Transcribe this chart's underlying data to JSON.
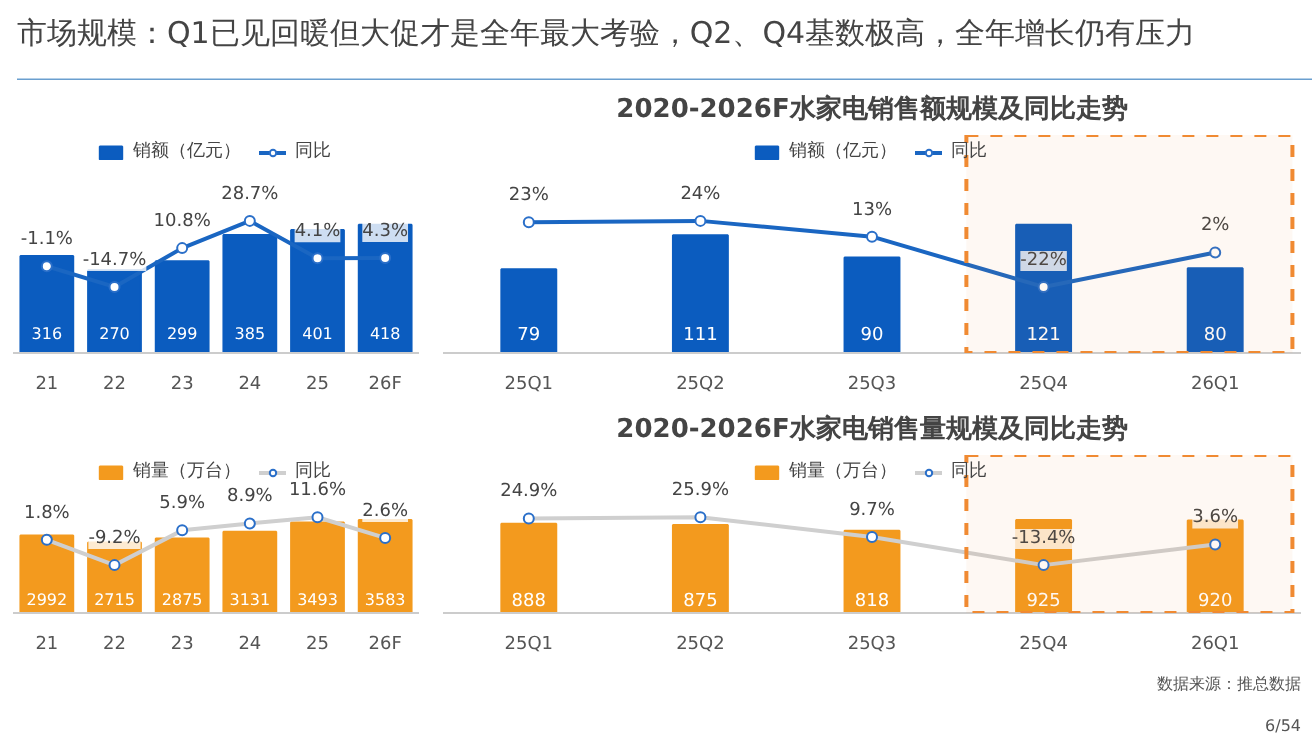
{
  "chart_data": [
    {
      "type": "other",
      "title": "市场规模：Q1已见回暖但大促才是全年最大考验，Q2、Q4基数极高，全年增长仍有压力"
    },
    {
      "type": "bar",
      "categories": [
        "21",
        "22",
        "23",
        "24",
        "25",
        "26F"
      ],
      "tick_labels": "x",
      "legend": "top",
      "marker": "circle",
      "data_labels": true,
      "series": [
        {
          "name": "销额（亿元）",
          "color": "#0b5cbf",
          "values": [
            316,
            270,
            299,
            385,
            401,
            418
          ]
        },
        {
          "name": "同比",
          "type": "line",
          "axis": "y2",
          "color": "#1a66c2",
          "values": [
            -1.1,
            -14.7,
            10.8,
            28.7,
            4.1,
            4.3
          ],
          "value_labels": [
            "-1.1%",
            "-14.7%",
            "10.8%",
            "28.7%",
            "4.1%",
            "4.3%"
          ]
        }
      ]
    },
    {
      "type": "bar",
      "title": "2020-2026F水家电销售额规模及同比走势",
      "categories": [
        "25Q1",
        "25Q2",
        "25Q3",
        "25Q4",
        "26Q1"
      ],
      "tick_labels": "x",
      "legend": "top",
      "marker": "circle",
      "data_labels": true,
      "series": [
        {
          "name": "销额（亿元）",
          "color": "#0b5cbf",
          "values": [
            79,
            111,
            90,
            121,
            80
          ]
        },
        {
          "name": "同比",
          "type": "line",
          "axis": "y2",
          "color": "#1a66c2",
          "values": [
            23,
            24,
            13,
            -22,
            2
          ],
          "value_labels": [
            "23%",
            "24%",
            "13%",
            "-22%",
            "2%"
          ]
        }
      ],
      "bands": [
        {
          "axis": "x",
          "from": "25Q4",
          "to": "26Q1",
          "color": "#f08a32"
        }
      ]
    },
    {
      "type": "bar",
      "categories": [
        "21",
        "22",
        "23",
        "24",
        "25",
        "26F"
      ],
      "tick_labels": "x",
      "legend": "top",
      "marker": "circle",
      "data_labels": true,
      "series": [
        {
          "name": "销量（万台）",
          "color": "#f39a1e",
          "values": [
            2992,
            2715,
            2875,
            3131,
            3493,
            3583
          ]
        },
        {
          "name": "同比",
          "type": "line",
          "axis": "y2",
          "color": "#cfcfcf",
          "values": [
            1.8,
            -9.2,
            5.9,
            8.9,
            11.6,
            2.6
          ],
          "value_labels": [
            "1.8%",
            "-9.2%",
            "5.9%",
            "8.9%",
            "11.6%",
            "2.6%"
          ]
        }
      ]
    },
    {
      "type": "bar",
      "title": "2020-2026F水家电销售量规模及同比走势",
      "categories": [
        "25Q1",
        "25Q2",
        "25Q3",
        "25Q4",
        "26Q1"
      ],
      "tick_labels": "x",
      "legend": "top",
      "marker": "circle",
      "data_labels": true,
      "series": [
        {
          "name": "销量（万台）",
          "color": "#f39a1e",
          "values": [
            888,
            875,
            818,
            925,
            920
          ]
        },
        {
          "name": "同比",
          "type": "line",
          "axis": "y2",
          "color": "#cfcfcf",
          "values": [
            24.9,
            25.9,
            9.7,
            -13.4,
            3.6
          ],
          "value_labels": [
            "24.9%",
            "25.9%",
            "9.7%",
            "-13.4%",
            "3.6%"
          ]
        }
      ],
      "bands": [
        {
          "axis": "x",
          "from": "25Q4",
          "to": "26Q1",
          "color": "#f08a32"
        }
      ],
      "annotations": [
        "数据来源：推总数据",
        "6/54"
      ]
    }
  ]
}
